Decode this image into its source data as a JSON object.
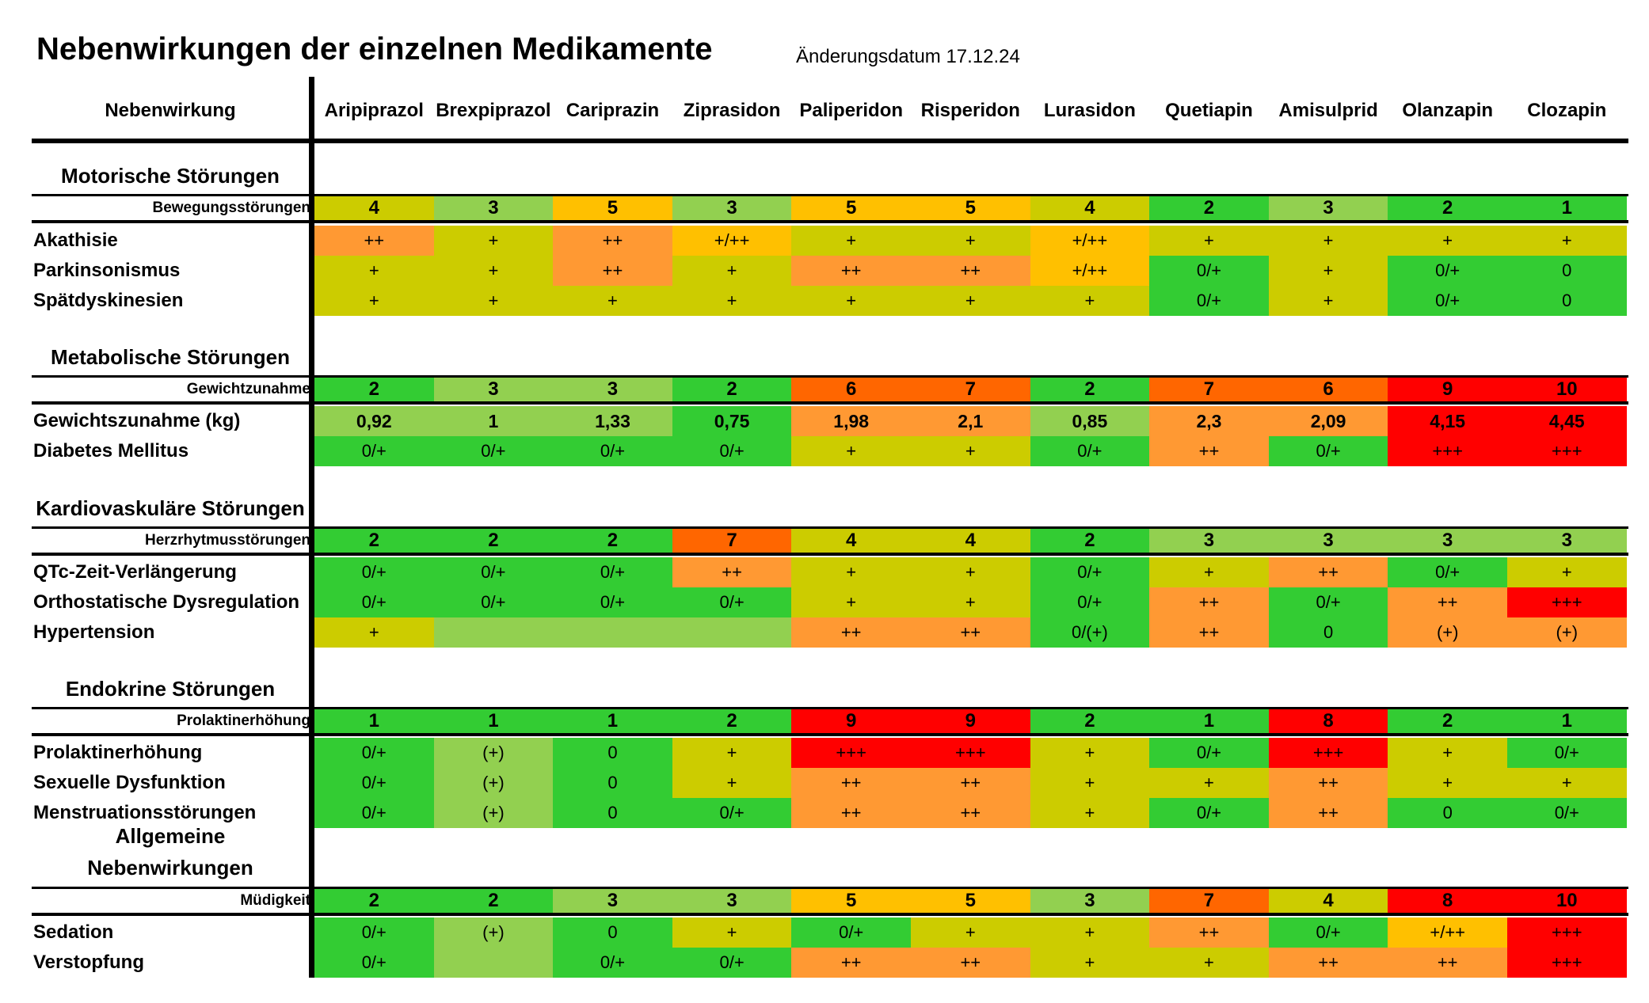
{
  "title": "Nebenwirkungen der einzelnen Medikamente",
  "date": "Änderungsdatum 17.12.24",
  "header_label": "Nebenwirkung",
  "drugs": [
    "Aripiprazol",
    "Brexpiprazol",
    "Cariprazin",
    "Ziprasidon",
    "Paliperidon",
    "Risperidon",
    "Lurasidon",
    "Quetiapin",
    "Amisulprid",
    "Olanzapin",
    "Clozapin"
  ],
  "colors": {
    "dg": "#33cc33",
    "lg": "#92d050",
    "ol": "#cccc00",
    "yo": "#ffc000",
    "or": "#ff9933",
    "do": "#ff6600",
    "rd": "#ff0000",
    "wh": "#ffffff"
  },
  "sections": [
    {
      "title": "Motorische Störungen",
      "summary": {
        "label": "Bewegungsstörungen",
        "values": [
          "4",
          "3",
          "5",
          "3",
          "5",
          "5",
          "4",
          "2",
          "3",
          "2",
          "1"
        ],
        "colors": [
          "ol",
          "lg",
          "yo",
          "lg",
          "yo",
          "yo",
          "ol",
          "dg",
          "lg",
          "dg",
          "dg"
        ]
      },
      "rows": [
        {
          "label": "Akathisie",
          "values": [
            "++",
            "+",
            "++",
            "+/++",
            "+",
            "+",
            "+/++",
            "+",
            "+",
            "+",
            "+"
          ],
          "colors": [
            "or",
            "ol",
            "or",
            "yo",
            "ol",
            "ol",
            "yo",
            "ol",
            "ol",
            "ol",
            "ol"
          ]
        },
        {
          "label": "Parkinsonismus",
          "values": [
            "+",
            "+",
            "++",
            "+",
            "++",
            "++",
            "+/++",
            "0/+",
            "+",
            "0/+",
            "0"
          ],
          "colors": [
            "ol",
            "ol",
            "or",
            "ol",
            "or",
            "or",
            "yo",
            "dg",
            "ol",
            "dg",
            "dg"
          ]
        },
        {
          "label": "Spätdyskinesien",
          "values": [
            "+",
            "+",
            "+",
            "+",
            "+",
            "+",
            "+",
            "0/+",
            "+",
            "0/+",
            "0"
          ],
          "colors": [
            "ol",
            "ol",
            "ol",
            "ol",
            "ol",
            "ol",
            "ol",
            "dg",
            "ol",
            "dg",
            "dg"
          ]
        }
      ]
    },
    {
      "title": "Metabolische Störungen",
      "summary": {
        "label": "Gewichtzunahme",
        "values": [
          "2",
          "3",
          "3",
          "2",
          "6",
          "7",
          "2",
          "7",
          "6",
          "9",
          "10"
        ],
        "colors": [
          "dg",
          "lg",
          "lg",
          "dg",
          "do",
          "do",
          "dg",
          "do",
          "do",
          "rd",
          "rd"
        ]
      },
      "rows": [
        {
          "label": "Gewichtszunahme (kg)",
          "bold": true,
          "values": [
            "0,92",
            "1",
            "1,33",
            "0,75",
            "1,98",
            "2,1",
            "0,85",
            "2,3",
            "2,09",
            "4,15",
            "4,45"
          ],
          "colors": [
            "lg",
            "lg",
            "lg",
            "dg",
            "or",
            "or",
            "lg",
            "or",
            "or",
            "rd",
            "rd"
          ]
        },
        {
          "label": "Diabetes Mellitus",
          "values": [
            "0/+",
            "0/+",
            "0/+",
            "0/+",
            "+",
            "+",
            "0/+",
            "++",
            "0/+",
            "+++",
            "+++"
          ],
          "colors": [
            "dg",
            "dg",
            "dg",
            "dg",
            "ol",
            "ol",
            "dg",
            "or",
            "dg",
            "rd",
            "rd"
          ]
        }
      ]
    },
    {
      "title": "Kardiovaskuläre Störungen",
      "summary": {
        "label": "Herzrhytmusstörungen",
        "values": [
          "2",
          "2",
          "2",
          "7",
          "4",
          "4",
          "2",
          "3",
          "3",
          "3",
          "3"
        ],
        "colors": [
          "dg",
          "dg",
          "dg",
          "do",
          "ol",
          "ol",
          "dg",
          "lg",
          "lg",
          "lg",
          "lg"
        ]
      },
      "rows": [
        {
          "label": "QTc-Zeit-Verlängerung",
          "values": [
            "0/+",
            "0/+",
            "0/+",
            "++",
            "+",
            "+",
            "0/+",
            "+",
            "++",
            "0/+",
            "+"
          ],
          "colors": [
            "dg",
            "dg",
            "dg",
            "or",
            "ol",
            "ol",
            "dg",
            "ol",
            "or",
            "dg",
            "ol"
          ]
        },
        {
          "label": "Orthostatische Dysregulation",
          "values": [
            "0/+",
            "0/+",
            "0/+",
            "0/+",
            "+",
            "+",
            "0/+",
            "++",
            "0/+",
            "++",
            "+++"
          ],
          "colors": [
            "dg",
            "dg",
            "dg",
            "dg",
            "ol",
            "ol",
            "dg",
            "or",
            "dg",
            "or",
            "rd"
          ]
        },
        {
          "label": "Hypertension",
          "values": [
            "+",
            "",
            "",
            "",
            "++",
            "++",
            "0/(+)",
            "++",
            "0",
            "(+)",
            "(+)"
          ],
          "colors": [
            "ol",
            "lg",
            "lg",
            "lg",
            "or",
            "or",
            "dg",
            "or",
            "dg",
            "or",
            "or"
          ]
        }
      ]
    },
    {
      "title": "Endokrine Störungen",
      "summary": {
        "label": "Prolaktinerhöhung",
        "values": [
          "1",
          "1",
          "1",
          "2",
          "9",
          "9",
          "2",
          "1",
          "8",
          "2",
          "1"
        ],
        "colors": [
          "dg",
          "dg",
          "dg",
          "dg",
          "rd",
          "rd",
          "dg",
          "dg",
          "rd",
          "dg",
          "dg"
        ]
      },
      "rows": [
        {
          "label": "Prolaktinerhöhung",
          "values": [
            "0/+",
            "(+)",
            "0",
            "+",
            "+++",
            "+++",
            "+",
            "0/+",
            "+++",
            "+",
            "0/+"
          ],
          "colors": [
            "dg",
            "lg",
            "dg",
            "ol",
            "rd",
            "rd",
            "ol",
            "dg",
            "rd",
            "ol",
            "dg"
          ]
        },
        {
          "label": "Sexuelle Dysfunktion",
          "values": [
            "0/+",
            "(+)",
            "0",
            "+",
            "++",
            "++",
            "+",
            "+",
            "++",
            "+",
            "+"
          ],
          "colors": [
            "dg",
            "lg",
            "dg",
            "ol",
            "or",
            "or",
            "ol",
            "ol",
            "or",
            "ol",
            "ol"
          ]
        },
        {
          "label": "Menstruationsstörungen",
          "values": [
            "0/+",
            "(+)",
            "0",
            "0/+",
            "++",
            "++",
            "+",
            "0/+",
            "++",
            "0",
            "0/+"
          ],
          "colors": [
            "dg",
            "lg",
            "dg",
            "dg",
            "or",
            "or",
            "ol",
            "dg",
            "or",
            "dg",
            "dg"
          ]
        }
      ]
    },
    {
      "title_line1": "Allgemeine",
      "title_line2": "Nebenwirkungen",
      "summary": {
        "label": "Müdigkeit",
        "values": [
          "2",
          "2",
          "3",
          "3",
          "5",
          "5",
          "3",
          "7",
          "4",
          "8",
          "10"
        ],
        "colors": [
          "dg",
          "dg",
          "lg",
          "lg",
          "yo",
          "yo",
          "lg",
          "do",
          "ol",
          "rd",
          "rd"
        ]
      },
      "rows": [
        {
          "label": "Sedation",
          "values": [
            "0/+",
            "(+)",
            "0",
            "+",
            "0/+",
            "+",
            "+",
            "++",
            "0/+",
            "+/++",
            "+++"
          ],
          "colors": [
            "dg",
            "lg",
            "dg",
            "ol",
            "dg",
            "ol",
            "ol",
            "or",
            "dg",
            "yo",
            "rd"
          ]
        },
        {
          "label": "Verstopfung",
          "values": [
            "0/+",
            "",
            "0/+",
            "0/+",
            "++",
            "++",
            "+",
            "+",
            "++",
            "++",
            "+++"
          ],
          "colors": [
            "dg",
            "lg",
            "dg",
            "dg",
            "or",
            "or",
            "ol",
            "ol",
            "or",
            "or",
            "rd"
          ]
        }
      ]
    }
  ]
}
